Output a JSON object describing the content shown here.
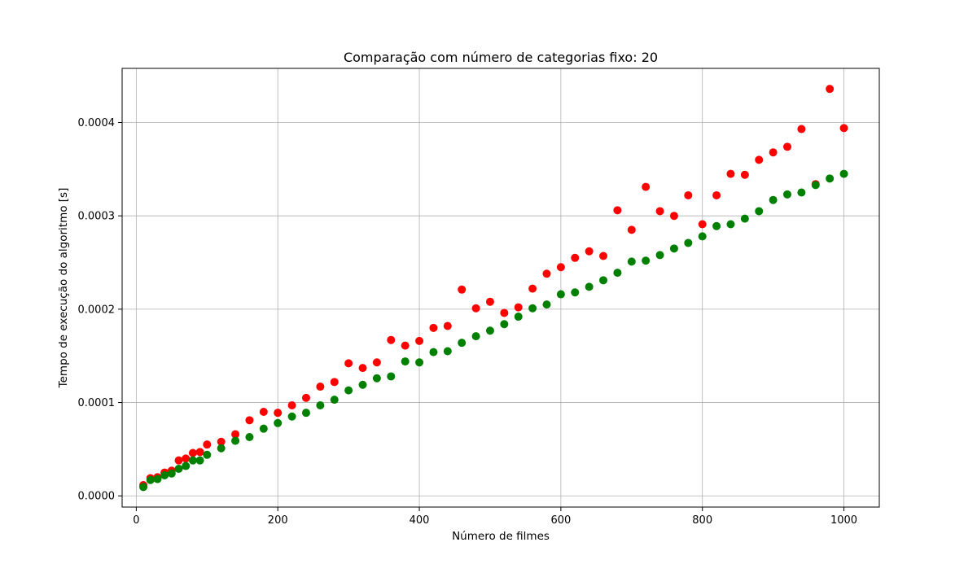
{
  "chart_data": {
    "type": "scatter",
    "title": "Comparação com número de categorias fixo: 20",
    "xlabel": "Número de filmes",
    "ylabel": "Tempo de execução do algoritmo [s]",
    "xlim": [
      -20,
      1050
    ],
    "ylim": [
      -1.2e-05,
      0.000458
    ],
    "xticks": [
      0,
      200,
      400,
      600,
      800,
      1000
    ],
    "xtick_labels": [
      "0",
      "200",
      "400",
      "600",
      "800",
      "1000"
    ],
    "yticks": [
      0,
      0.0001,
      0.0002,
      0.0003,
      0.0004
    ],
    "ytick_labels": [
      "0.0000",
      "0.0001",
      "0.0002",
      "0.0003",
      "0.0004"
    ],
    "grid": true,
    "legend": "none",
    "series": [
      {
        "color": "#ff0000",
        "points": [
          [
            10,
            1.15e-05
          ],
          [
            20,
            1.9e-05
          ],
          [
            30,
            2e-05
          ],
          [
            40,
            2.5e-05
          ],
          [
            50,
            2.7e-05
          ],
          [
            60,
            3.8e-05
          ],
          [
            70,
            4e-05
          ],
          [
            80,
            4.6e-05
          ],
          [
            90,
            4.7e-05
          ],
          [
            100,
            5.5e-05
          ],
          [
            120,
            5.8e-05
          ],
          [
            140,
            6.6e-05
          ],
          [
            160,
            8.1e-05
          ],
          [
            180,
            9e-05
          ],
          [
            200,
            8.9e-05
          ],
          [
            220,
            9.7e-05
          ],
          [
            240,
            0.000105
          ],
          [
            260,
            0.000117
          ],
          [
            280,
            0.000122
          ],
          [
            300,
            0.000142
          ],
          [
            320,
            0.000137
          ],
          [
            340,
            0.000143
          ],
          [
            360,
            0.000167
          ],
          [
            380,
            0.000161
          ],
          [
            400,
            0.000166
          ],
          [
            420,
            0.00018
          ],
          [
            440,
            0.000182
          ],
          [
            460,
            0.000221
          ],
          [
            480,
            0.000201
          ],
          [
            500,
            0.000208
          ],
          [
            520,
            0.000196
          ],
          [
            540,
            0.000202
          ],
          [
            560,
            0.000222
          ],
          [
            580,
            0.000238
          ],
          [
            600,
            0.000245
          ],
          [
            620,
            0.000255
          ],
          [
            640,
            0.000262
          ],
          [
            660,
            0.000257
          ],
          [
            680,
            0.000306
          ],
          [
            700,
            0.000285
          ],
          [
            720,
            0.000331
          ],
          [
            740,
            0.000305
          ],
          [
            760,
            0.0003
          ],
          [
            780,
            0.000322
          ],
          [
            800,
            0.000291
          ],
          [
            820,
            0.000322
          ],
          [
            840,
            0.000345
          ],
          [
            860,
            0.000344
          ],
          [
            880,
            0.00036
          ],
          [
            900,
            0.000368
          ],
          [
            920,
            0.000374
          ],
          [
            940,
            0.000393
          ],
          [
            960,
            0.000334
          ],
          [
            980,
            0.000436
          ],
          [
            1000,
            0.000394
          ]
        ]
      },
      {
        "color": "#008000",
        "points": [
          [
            10,
            9.5e-06
          ],
          [
            20,
            1.7e-05
          ],
          [
            30,
            1.8e-05
          ],
          [
            40,
            2.2e-05
          ],
          [
            50,
            2.4e-05
          ],
          [
            60,
            2.9e-05
          ],
          [
            70,
            3.2e-05
          ],
          [
            80,
            3.8e-05
          ],
          [
            90,
            3.8e-05
          ],
          [
            100,
            4.4e-05
          ],
          [
            120,
            5.1e-05
          ],
          [
            140,
            5.9e-05
          ],
          [
            160,
            6.3e-05
          ],
          [
            180,
            7.2e-05
          ],
          [
            200,
            7.8e-05
          ],
          [
            220,
            8.5e-05
          ],
          [
            240,
            8.9e-05
          ],
          [
            260,
            9.7e-05
          ],
          [
            280,
            0.000103
          ],
          [
            300,
            0.000113
          ],
          [
            320,
            0.000119
          ],
          [
            340,
            0.000126
          ],
          [
            360,
            0.000128
          ],
          [
            380,
            0.000144
          ],
          [
            400,
            0.000143
          ],
          [
            420,
            0.000154
          ],
          [
            440,
            0.000155
          ],
          [
            460,
            0.000164
          ],
          [
            480,
            0.000171
          ],
          [
            500,
            0.000177
          ],
          [
            520,
            0.000184
          ],
          [
            540,
            0.000192
          ],
          [
            560,
            0.000201
          ],
          [
            580,
            0.000205
          ],
          [
            600,
            0.000216
          ],
          [
            620,
            0.000218
          ],
          [
            640,
            0.000224
          ],
          [
            660,
            0.000231
          ],
          [
            680,
            0.000239
          ],
          [
            700,
            0.000251
          ],
          [
            720,
            0.000252
          ],
          [
            740,
            0.000258
          ],
          [
            760,
            0.000265
          ],
          [
            780,
            0.000271
          ],
          [
            800,
            0.000278
          ],
          [
            820,
            0.000289
          ],
          [
            840,
            0.000291
          ],
          [
            860,
            0.000297
          ],
          [
            880,
            0.000305
          ],
          [
            900,
            0.000317
          ],
          [
            920,
            0.000323
          ],
          [
            940,
            0.000325
          ],
          [
            960,
            0.000333
          ],
          [
            980,
            0.00034
          ],
          [
            1000,
            0.000345
          ]
        ]
      }
    ]
  }
}
